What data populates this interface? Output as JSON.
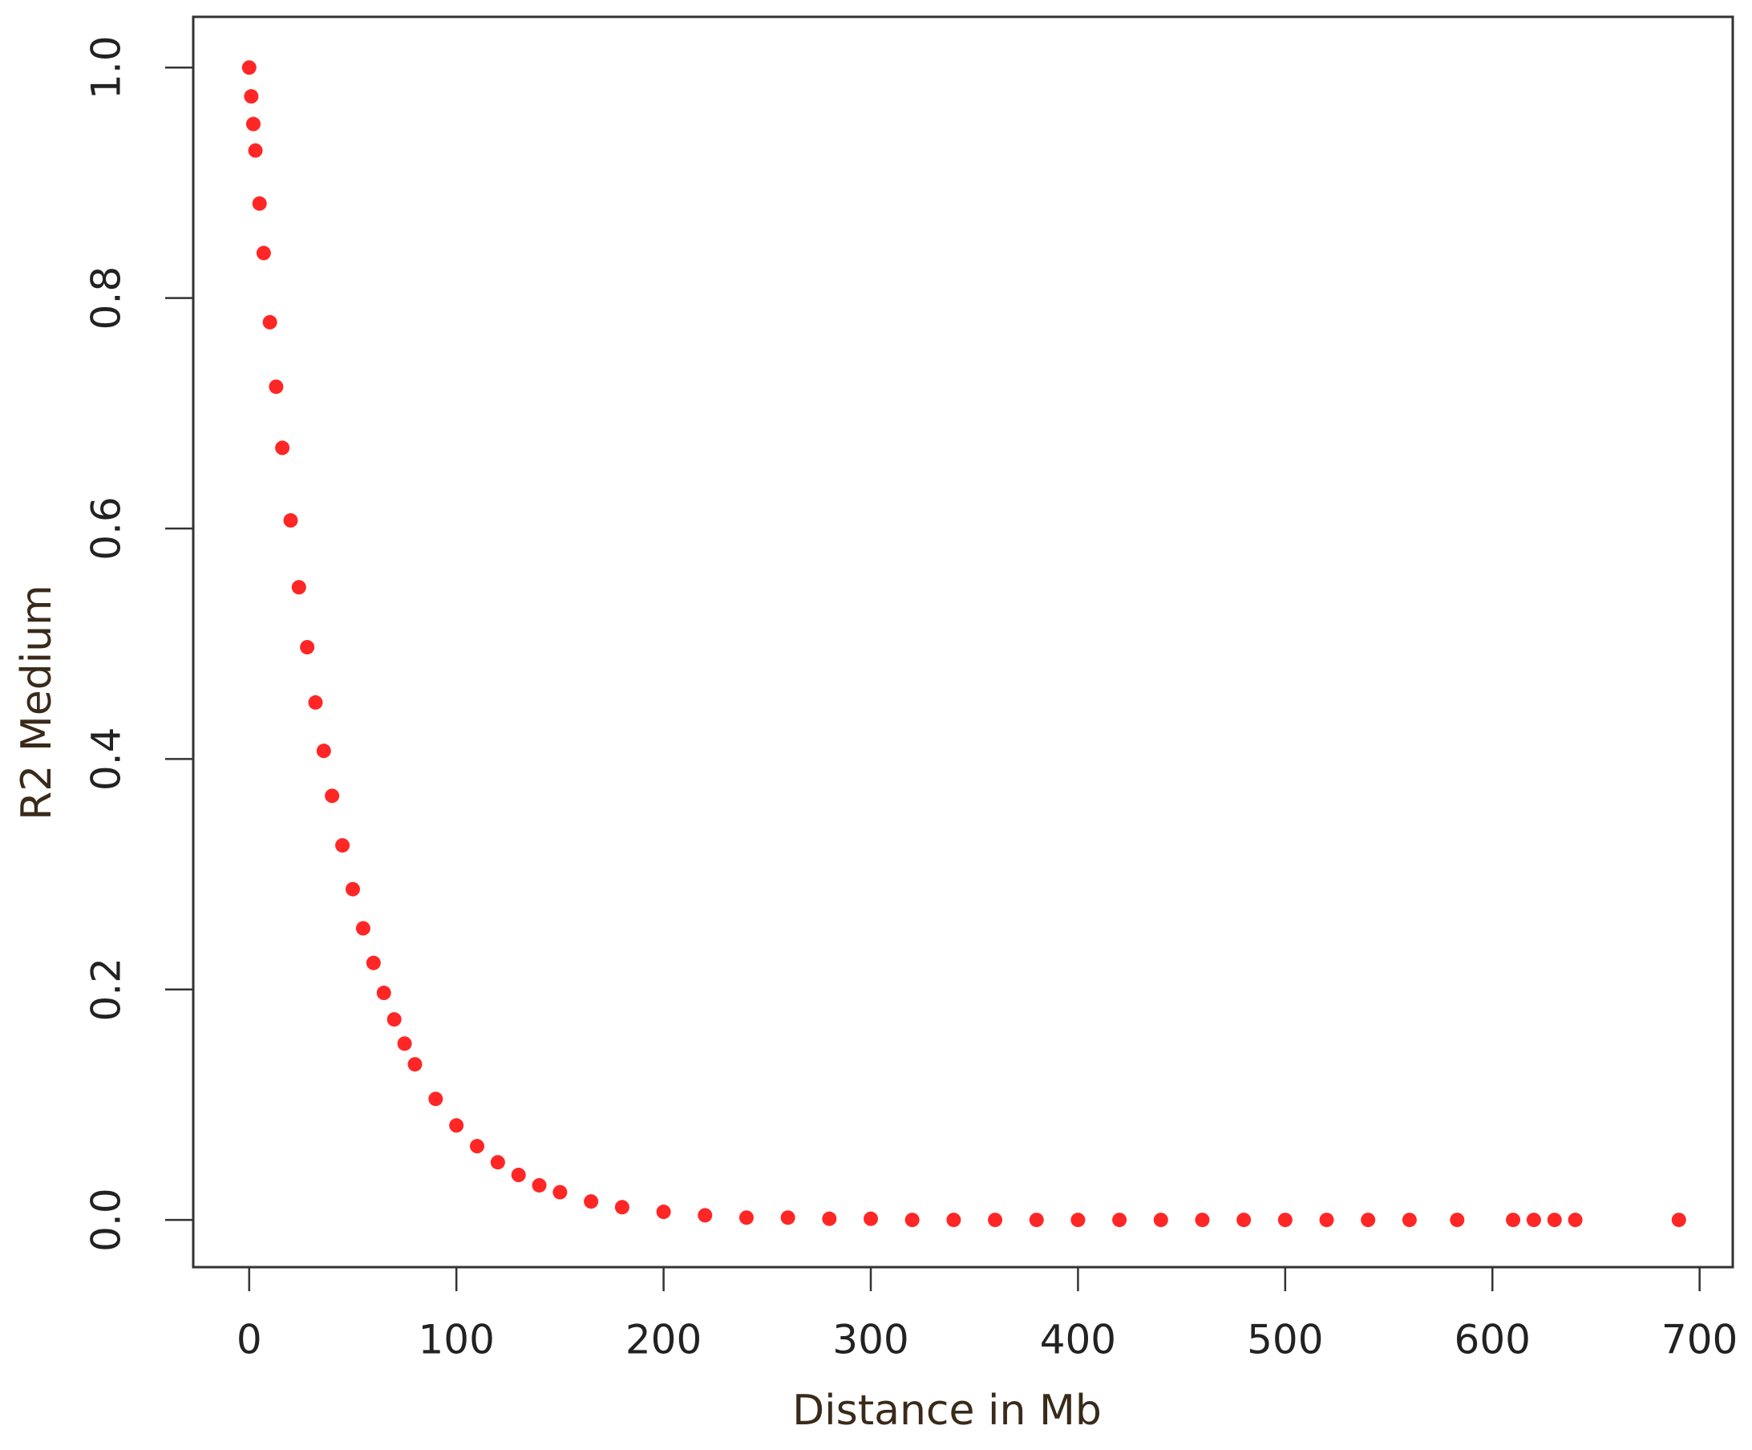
{
  "chart_data": {
    "type": "scatter",
    "x_label": "Distance in Mb",
    "y_label": "R2 Medium",
    "color": "#ff0000",
    "x": [
      0,
      1,
      2,
      3,
      5,
      7,
      10,
      13,
      16,
      20,
      24,
      28,
      32,
      36,
      40,
      45,
      50,
      55,
      60,
      65,
      70,
      75,
      80,
      90,
      100,
      110,
      120,
      130,
      140,
      150,
      165,
      180,
      200,
      220,
      240,
      260,
      280,
      300,
      320,
      340,
      360,
      380,
      400,
      420,
      440,
      460,
      480,
      500,
      520,
      540,
      560,
      583,
      610,
      620,
      630,
      640,
      690
    ],
    "values": [
      1.0,
      0.975,
      0.951,
      0.928,
      0.882,
      0.839,
      0.779,
      0.723,
      0.67,
      0.607,
      0.549,
      0.497,
      0.449,
      0.407,
      0.368,
      0.325,
      0.287,
      0.253,
      0.223,
      0.197,
      0.174,
      0.153,
      0.135,
      0.105,
      0.082,
      0.064,
      0.05,
      0.039,
      0.03,
      0.024,
      0.016,
      0.011,
      0.007,
      0.004,
      0.002,
      0.002,
      0.001,
      0.001,
      0,
      0,
      0,
      0,
      0,
      0,
      0,
      0,
      0,
      0,
      0,
      0,
      0,
      0,
      0,
      0,
      0,
      0,
      0
    ],
    "xlim": [
      -27,
      716
    ],
    "ylim": [
      -0.041,
      1.044
    ],
    "xticks": [
      0,
      100,
      200,
      300,
      400,
      500,
      600,
      700
    ],
    "yticks": [
      {
        "value": 0,
        "label": "0.0"
      },
      0.2,
      0.4,
      0.6,
      0.8,
      {
        "value": 1,
        "label": "1.0"
      }
    ]
  }
}
